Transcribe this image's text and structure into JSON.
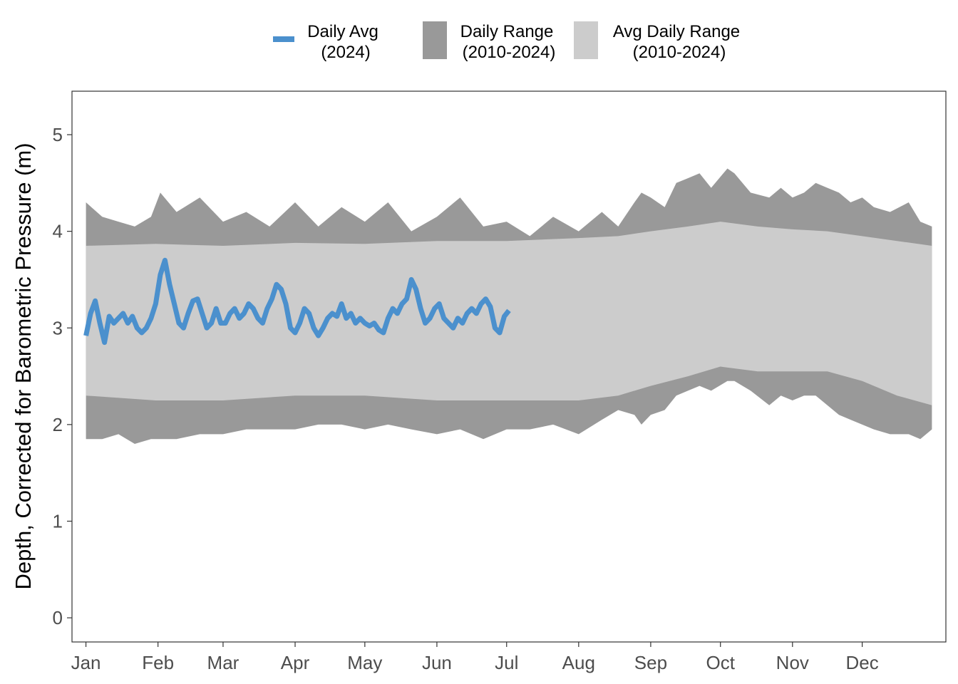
{
  "chart_data": {
    "type": "area",
    "title": "",
    "xlabel": "",
    "ylabel": "Depth, Corrected for Barometric Pressure (m)",
    "x_tick_labels": [
      "Jan",
      "Feb",
      "Mar",
      "Apr",
      "May",
      "Jun",
      "Jul",
      "Aug",
      "Sep",
      "Oct",
      "Nov",
      "Dec"
    ],
    "x_tick_days": [
      1,
      32,
      60,
      91,
      121,
      152,
      182,
      213,
      244,
      274,
      305,
      335
    ],
    "xlim": [
      -5,
      371
    ],
    "y_ticks": [
      0,
      1,
      2,
      3,
      4,
      5
    ],
    "y_tick_labels": [
      "0",
      "1",
      "2",
      "3",
      "4",
      "5"
    ],
    "ylim": [
      -0.25,
      5.45
    ],
    "grid": false,
    "legend_position": "top",
    "legend": [
      {
        "line1": "Daily Avg",
        "line2": "(2024)",
        "color": "#4b90cd",
        "kind": "line"
      },
      {
        "line1": "Daily Range",
        "line2": "(2010-2024)",
        "color": "#999999",
        "kind": "fill"
      },
      {
        "line1": "Avg Daily Range",
        "line2": "(2010-2024)",
        "color": "#cccccc",
        "kind": "fill"
      }
    ],
    "series": [
      {
        "name": "Daily Range (2010-2024)",
        "kind": "band",
        "color": "#999999",
        "days": [
          1,
          8,
          15,
          22,
          29,
          33,
          40,
          50,
          60,
          70,
          80,
          91,
          101,
          111,
          121,
          131,
          141,
          152,
          162,
          172,
          182,
          192,
          202,
          213,
          223,
          230,
          237,
          240,
          244,
          250,
          255,
          260,
          265,
          270,
          277,
          280,
          287,
          295,
          300,
          305,
          310,
          315,
          320,
          325,
          330,
          335,
          340,
          347,
          355,
          360,
          365
        ],
        "upper": [
          4.3,
          4.15,
          4.1,
          4.05,
          4.15,
          4.4,
          4.2,
          4.35,
          4.1,
          4.2,
          4.05,
          4.3,
          4.05,
          4.25,
          4.1,
          4.3,
          4.0,
          4.15,
          4.35,
          4.05,
          4.1,
          3.95,
          4.15,
          4.0,
          4.2,
          4.05,
          4.3,
          4.4,
          4.35,
          4.25,
          4.5,
          4.55,
          4.6,
          4.45,
          4.65,
          4.6,
          4.4,
          4.35,
          4.45,
          4.35,
          4.4,
          4.5,
          4.45,
          4.4,
          4.3,
          4.35,
          4.25,
          4.2,
          4.3,
          4.1,
          4.05
        ],
        "lower": [
          1.85,
          1.85,
          1.9,
          1.8,
          1.85,
          1.85,
          1.85,
          1.9,
          1.9,
          1.95,
          1.95,
          1.95,
          2.0,
          2.0,
          1.95,
          2.0,
          1.95,
          1.9,
          1.95,
          1.85,
          1.95,
          1.95,
          2.0,
          1.9,
          2.05,
          2.15,
          2.1,
          2.0,
          2.1,
          2.15,
          2.3,
          2.35,
          2.4,
          2.35,
          2.45,
          2.45,
          2.35,
          2.2,
          2.3,
          2.25,
          2.3,
          2.3,
          2.2,
          2.1,
          2.05,
          2.0,
          1.95,
          1.9,
          1.9,
          1.85,
          1.95
        ]
      },
      {
        "name": "Avg Daily Range (2010-2024)",
        "kind": "band",
        "color": "#cccccc",
        "days": [
          1,
          31,
          60,
          91,
          121,
          152,
          182,
          213,
          230,
          244,
          260,
          274,
          290,
          305,
          320,
          335,
          350,
          365
        ],
        "upper": [
          3.85,
          3.87,
          3.85,
          3.88,
          3.87,
          3.9,
          3.9,
          3.93,
          3.95,
          4.0,
          4.05,
          4.1,
          4.05,
          4.02,
          4.0,
          3.95,
          3.9,
          3.85
        ],
        "lower": [
          2.3,
          2.25,
          2.25,
          2.3,
          2.3,
          2.25,
          2.25,
          2.25,
          2.3,
          2.4,
          2.5,
          2.6,
          2.55,
          2.55,
          2.55,
          2.45,
          2.3,
          2.2
        ]
      },
      {
        "name": "Daily Avg (2024)",
        "kind": "line",
        "color": "#4b90cd",
        "days": [
          1,
          3,
          5,
          7,
          9,
          11,
          13,
          15,
          17,
          19,
          21,
          23,
          25,
          27,
          29,
          31,
          33,
          35,
          37,
          39,
          41,
          43,
          45,
          47,
          49,
          51,
          53,
          55,
          57,
          59,
          61,
          63,
          65,
          67,
          69,
          71,
          73,
          75,
          77,
          79,
          81,
          83,
          85,
          87,
          89,
          91,
          93,
          95,
          97,
          99,
          101,
          103,
          105,
          107,
          109,
          111,
          113,
          115,
          117,
          119,
          121,
          123,
          125,
          127,
          129,
          131,
          133,
          135,
          137,
          139,
          141,
          143,
          145,
          147,
          149,
          151,
          153,
          155,
          157,
          159,
          161,
          163,
          165,
          167,
          169,
          171,
          173,
          175,
          177,
          179,
          181,
          183
        ],
        "values": [
          2.92,
          3.15,
          3.28,
          3.05,
          2.85,
          3.12,
          3.05,
          3.1,
          3.15,
          3.05,
          3.12,
          3.0,
          2.95,
          3.0,
          3.1,
          3.25,
          3.55,
          3.7,
          3.45,
          3.25,
          3.05,
          3.0,
          3.15,
          3.28,
          3.3,
          3.15,
          3.0,
          3.05,
          3.2,
          3.05,
          3.05,
          3.15,
          3.2,
          3.1,
          3.15,
          3.25,
          3.2,
          3.1,
          3.05,
          3.2,
          3.3,
          3.45,
          3.4,
          3.25,
          3.0,
          2.95,
          3.05,
          3.2,
          3.15,
          3.0,
          2.92,
          3.0,
          3.1,
          3.15,
          3.12,
          3.25,
          3.1,
          3.15,
          3.05,
          3.1,
          3.05,
          3.02,
          3.05,
          2.98,
          2.95,
          3.1,
          3.2,
          3.15,
          3.25,
          3.3,
          3.5,
          3.4,
          3.2,
          3.05,
          3.1,
          3.2,
          3.25,
          3.1,
          3.05,
          3.0,
          3.1,
          3.05,
          3.15,
          3.2,
          3.15,
          3.25,
          3.3,
          3.22,
          3.0,
          2.95,
          3.12,
          3.18
        ]
      }
    ]
  }
}
